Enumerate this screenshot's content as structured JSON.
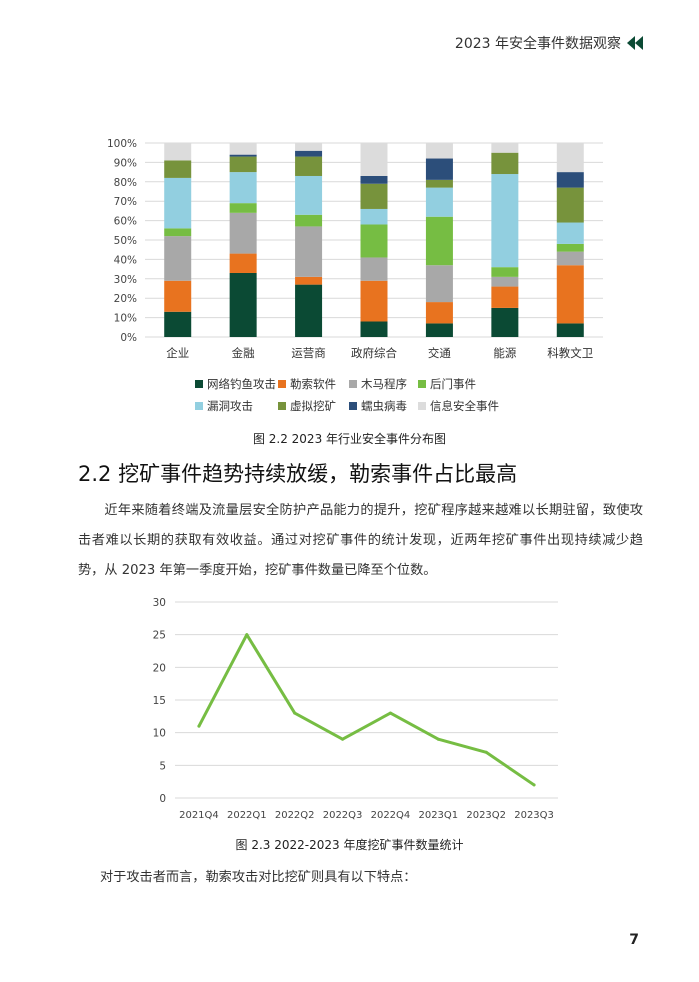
{
  "header": {
    "title": "2023 年安全事件数据观察"
  },
  "figure1": {
    "caption": "图 2.2   2023 年行业安全事件分布图"
  },
  "section": {
    "heading": "2.2  挖矿事件趋势持续放缓，勒索事件占比最高"
  },
  "paragraph1": "近年来随着终端及流量层安全防护产品能力的提升，挖矿程序越来越难以长期驻留，致使攻击者难以长期的获取有效收益。通过对挖矿事件的统计发现，近两年挖矿事件出现持续减少趋势，从 2023 年第一季度开始，挖矿事件数量已降至个位数。",
  "figure2": {
    "caption": "图 2.3   2022-2023 年度挖矿事件数量统计"
  },
  "paragraph2": "对于攻击者而言，勒索攻击对比挖矿则具有以下特点：",
  "page_number": "7",
  "chart_data": [
    {
      "type": "bar",
      "stacked": true,
      "categories": [
        "企业",
        "金融",
        "运营商",
        "政府综合",
        "交通",
        "能源",
        "科教文卫"
      ],
      "yticks": [
        "0%",
        "10%",
        "20%",
        "30%",
        "40%",
        "50%",
        "60%",
        "70%",
        "80%",
        "90%",
        "100%"
      ],
      "ylim": [
        0,
        100
      ],
      "grid": true,
      "legend_position": "bottom",
      "series": [
        {
          "name": "网络钓鱼攻击",
          "color": "#0b4a34",
          "values": [
            13,
            33,
            27,
            8,
            7,
            15,
            7
          ]
        },
        {
          "name": "勒索软件",
          "color": "#e8731f",
          "values": [
            16,
            10,
            4,
            21,
            11,
            11,
            30
          ]
        },
        {
          "name": "木马程序",
          "color": "#a8a8a8",
          "values": [
            23,
            21,
            26,
            12,
            19,
            5,
            7
          ]
        },
        {
          "name": "后门事件",
          "color": "#76bd43",
          "values": [
            4,
            5,
            6,
            17,
            25,
            5,
            4
          ]
        },
        {
          "name": "漏洞攻击",
          "color": "#92cfe0",
          "values": [
            26,
            16,
            20,
            8,
            15,
            48,
            11
          ]
        },
        {
          "name": "虚拟挖矿",
          "color": "#77933c",
          "values": [
            9,
            8,
            10,
            13,
            4,
            11,
            18
          ]
        },
        {
          "name": "蠕虫病毒",
          "color": "#2c4e7a",
          "values": [
            0,
            1,
            3,
            4,
            11,
            0,
            8
          ]
        },
        {
          "name": "信息安全事件",
          "color": "#dcdcdc",
          "values": [
            9,
            6,
            4,
            17,
            8,
            5,
            15
          ]
        }
      ]
    },
    {
      "type": "line",
      "x": [
        "2021Q4",
        "2022Q1",
        "2022Q2",
        "2022Q3",
        "2022Q4",
        "2023Q1",
        "2023Q2",
        "2023Q3"
      ],
      "series": [
        {
          "name": "",
          "color": "#76bd43",
          "values": [
            11,
            25,
            13,
            9,
            13,
            9,
            7,
            2
          ]
        }
      ],
      "yticks": [
        "0",
        "5",
        "10",
        "15",
        "20",
        "25",
        "30"
      ],
      "ylim": [
        0,
        30
      ],
      "grid": true
    }
  ],
  "colors": {
    "accent_green": "#0b4a34",
    "line_green": "#76bd43"
  }
}
